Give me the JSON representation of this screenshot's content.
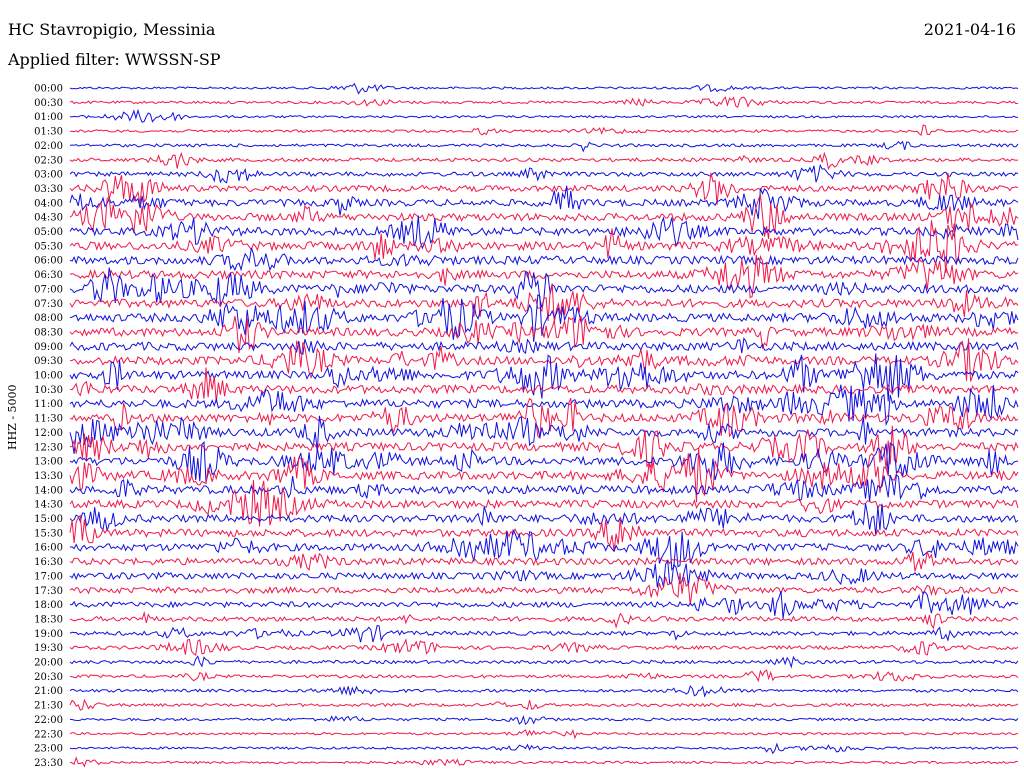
{
  "header": {
    "station": "HC Stavropigio, Messinia",
    "filter": "Applied filter: WWSSN-SP",
    "date": "2021-04-16"
  },
  "channel_label": "HHZ - 5000",
  "colors": {
    "blue": "#1010e0",
    "red": "#f0184a"
  },
  "chart_data": {
    "type": "line",
    "subtype": "helicorder",
    "title": "HC Stavropigio, Messinia",
    "subtitle": "Applied filter: WWSSN-SP",
    "date": "2021-04-16",
    "ylabel": "HHZ - 5000",
    "row_labels": [
      "00:00",
      "00:30",
      "01:00",
      "01:30",
      "02:00",
      "02:30",
      "03:00",
      "03:30",
      "04:00",
      "04:30",
      "05:00",
      "05:30",
      "06:00",
      "06:30",
      "07:00",
      "07:30",
      "08:00",
      "08:30",
      "09:00",
      "09:30",
      "10:00",
      "10:30",
      "11:00",
      "11:30",
      "12:00",
      "12:30",
      "13:00",
      "13:30",
      "14:00",
      "14:30",
      "15:00",
      "15:30",
      "16:00",
      "16:30",
      "17:00",
      "17:30",
      "18:00",
      "18:30",
      "19:00",
      "19:30",
      "20:00",
      "20:30",
      "21:00",
      "21:30",
      "22:00",
      "22:30",
      "23:00",
      "23:30"
    ],
    "row_colors_cycle": [
      "blue",
      "red"
    ],
    "activity_by_row": [
      0.15,
      0.2,
      0.15,
      0.2,
      0.25,
      0.35,
      0.45,
      0.7,
      0.8,
      0.9,
      0.95,
      1.0,
      1.0,
      1.0,
      1.0,
      1.0,
      1.0,
      1.0,
      1.0,
      1.0,
      1.0,
      1.0,
      1.0,
      1.0,
      1.0,
      1.0,
      1.0,
      1.0,
      1.0,
      0.95,
      0.9,
      0.9,
      0.85,
      0.8,
      0.75,
      0.7,
      0.6,
      0.5,
      0.4,
      0.35,
      0.3,
      0.25,
      0.25,
      0.25,
      0.2,
      0.15,
      0.15,
      0.15
    ]
  }
}
